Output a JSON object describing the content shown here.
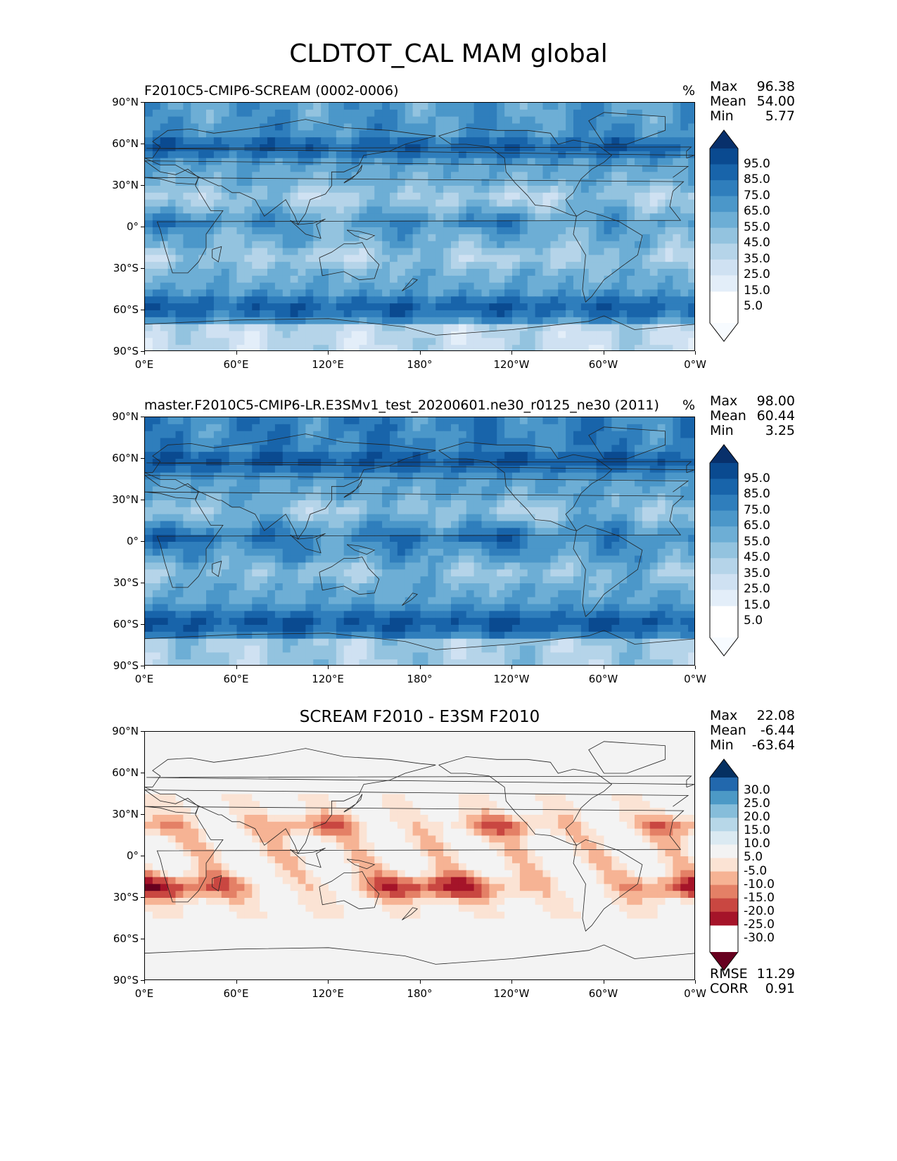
{
  "suptitle": "CLDTOT_CAL MAM global",
  "colors": {
    "blues": [
      "#f7fbff",
      "#e3eef9",
      "#cfe1f2",
      "#b5d4e9",
      "#93c3df",
      "#6daed5",
      "#4b97c9",
      "#2f7ebc",
      "#1864aa",
      "#0a4a90",
      "#08306b"
    ],
    "rdbu": [
      "#67001f",
      "#a51429",
      "#c94741",
      "#e48066",
      "#f6b394",
      "#fbe3d4",
      "#f3f3f3",
      "#dbeaf2",
      "#b7d7e8",
      "#86bdda",
      "#4c99c6",
      "#2268ad",
      "#053061"
    ],
    "coast": "#222222"
  },
  "panels": [
    {
      "title_left": "F2010C5-CMIP6-SCREAM (0002-0006)",
      "title_center": "",
      "units": "%",
      "stats": [
        {
          "label": "Max",
          "value": "96.38"
        },
        {
          "label": "Mean",
          "value": "54.00"
        },
        {
          "label": "Min",
          "value": "5.77"
        }
      ],
      "extra_stats": [],
      "cmap": "blues",
      "colorbar_labels": [
        "95.0",
        "85.0",
        "75.0",
        "65.0",
        "55.0",
        "45.0",
        "35.0",
        "25.0",
        "15.0",
        "5.0"
      ]
    },
    {
      "title_left": "master.F2010C5-CMIP6-LR.E3SMv1_test_20200601.ne30_r0125_ne30 (2011)",
      "title_center": "",
      "units": "%",
      "stats": [
        {
          "label": "Max",
          "value": "98.00"
        },
        {
          "label": "Mean",
          "value": "60.44"
        },
        {
          "label": "Min",
          "value": "3.25"
        }
      ],
      "extra_stats": [],
      "cmap": "blues",
      "colorbar_labels": [
        "95.0",
        "85.0",
        "75.0",
        "65.0",
        "55.0",
        "45.0",
        "35.0",
        "25.0",
        "15.0",
        "5.0"
      ]
    },
    {
      "title_left": "",
      "title_center": "SCREAM F2010 - E3SM F2010",
      "units": "",
      "stats": [
        {
          "label": "Max",
          "value": "22.08"
        },
        {
          "label": "Mean",
          "value": "-6.44"
        },
        {
          "label": "Min",
          "value": "-63.64"
        }
      ],
      "extra_stats": [
        {
          "label": "RMSE",
          "value": "11.29"
        },
        {
          "label": "CORR",
          "value": "0.91"
        }
      ],
      "cmap": "rdbu",
      "colorbar_labels": [
        "30.0",
        "25.0",
        "20.0",
        "15.0",
        "10.0",
        "5.0",
        "-5.0",
        "-10.0",
        "-15.0",
        "-20.0",
        "-25.0",
        "-30.0"
      ]
    }
  ],
  "axes": {
    "y_ticks": [
      "90°N",
      "60°N",
      "30°N",
      "0°",
      "30°S",
      "60°S",
      "90°S"
    ],
    "x_ticks": [
      "0°E",
      "60°E",
      "120°E",
      "180°",
      "120°W",
      "60°W",
      "0°W"
    ]
  },
  "chart_data": {
    "type": "heatmap",
    "title": "CLDTOT_CAL MAM global",
    "projection": "PlateCarree",
    "x_range_deg": [
      0,
      360
    ],
    "y_range_deg": [
      -90,
      90
    ],
    "panels": [
      {
        "name": "F2010C5-CMIP6-SCREAM (0002-0006)",
        "units": "%",
        "max": 96.38,
        "mean": 54.0,
        "min": 5.77,
        "levels": [
          5,
          15,
          25,
          35,
          45,
          55,
          65,
          75,
          85,
          95
        ]
      },
      {
        "name": "master.F2010C5-CMIP6-LR.E3SMv1_test_20200601.ne30_r0125_ne30 (2011)",
        "units": "%",
        "max": 98.0,
        "mean": 60.44,
        "min": 3.25,
        "levels": [
          5,
          15,
          25,
          35,
          45,
          55,
          65,
          75,
          85,
          95
        ]
      },
      {
        "name": "SCREAM F2010 - E3SM F2010",
        "max": 22.08,
        "mean": -6.44,
        "min": -63.64,
        "rmse": 11.29,
        "corr": 0.91,
        "levels": [
          -30,
          -25,
          -20,
          -15,
          -10,
          -5,
          5,
          10,
          15,
          20,
          25,
          30
        ]
      }
    ]
  }
}
